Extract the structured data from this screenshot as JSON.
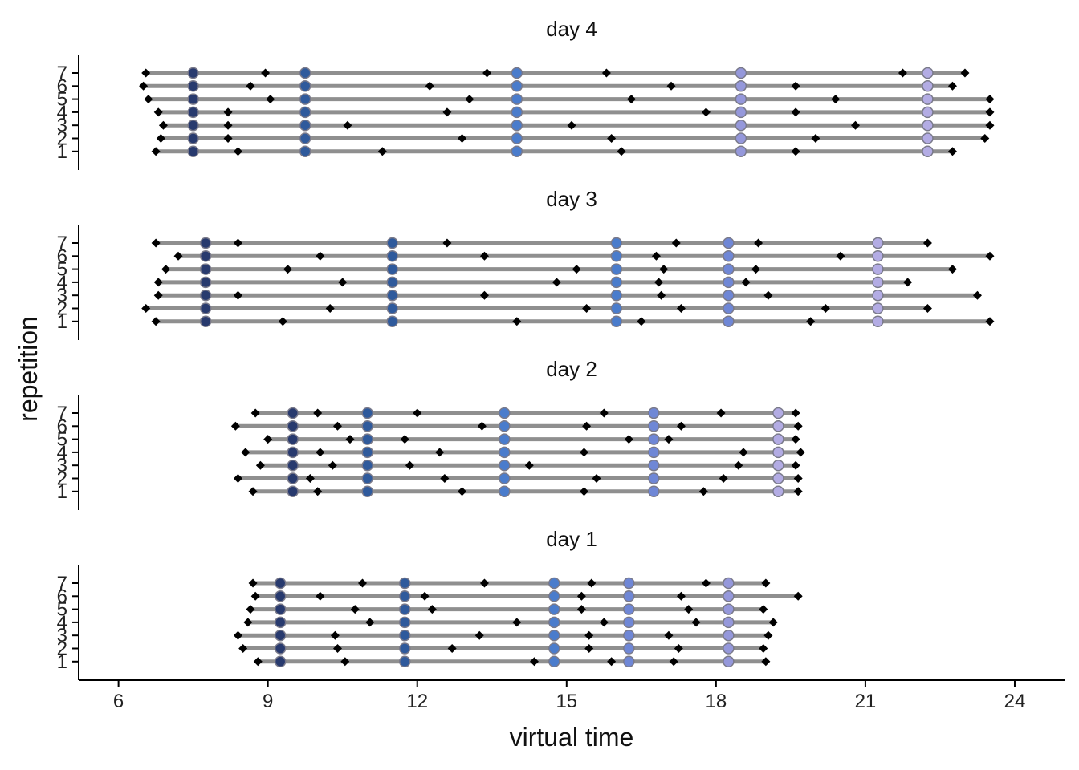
{
  "chart_data": {
    "type": "scatter",
    "title": "",
    "xlabel": "virtual time",
    "ylabel": "repetition",
    "xlim": [
      5.2,
      25.0
    ],
    "x_ticks": [
      "6",
      "9",
      "12",
      "15",
      "18",
      "21",
      "24"
    ],
    "y_ticks": [
      "1",
      "2",
      "3",
      "4",
      "5",
      "6",
      "7"
    ],
    "grid": false,
    "marker_colors": [
      "#283a6e",
      "#2f5a9c",
      "#4a7ccc",
      "#6f87d6",
      "#9598db",
      "#b3ace4"
    ],
    "event_color": "#000000",
    "line_color": "#8f8f8f",
    "panels": [
      {
        "name": "day 4",
        "markers": [
          7.5,
          9.75,
          14.0,
          18.5,
          22.25
        ],
        "marker_colors": [
          "#283a6e",
          "#2f5a9c",
          "#4a7ccc",
          "#9598db",
          "#b3ace4"
        ],
        "repetitions": [
          {
            "rep": 1,
            "start": 6.75,
            "end": 22.75,
            "events": [
              6.75,
              8.4,
              11.3,
              16.1,
              19.6,
              22.75
            ]
          },
          {
            "rep": 2,
            "start": 6.85,
            "end": 23.4,
            "events": [
              6.85,
              8.2,
              12.9,
              15.9,
              20.0,
              23.4
            ]
          },
          {
            "rep": 3,
            "start": 6.9,
            "end": 23.5,
            "events": [
              6.9,
              8.2,
              10.6,
              15.1,
              20.8,
              23.5
            ]
          },
          {
            "rep": 4,
            "start": 6.8,
            "end": 23.5,
            "events": [
              6.8,
              8.2,
              12.6,
              17.8,
              19.6,
              23.5
            ]
          },
          {
            "rep": 5,
            "start": 6.6,
            "end": 23.5,
            "events": [
              6.6,
              9.05,
              13.05,
              16.3,
              20.4,
              23.5
            ]
          },
          {
            "rep": 6,
            "start": 6.5,
            "end": 22.75,
            "events": [
              6.5,
              8.65,
              12.25,
              17.1,
              19.6,
              22.75
            ]
          },
          {
            "rep": 7,
            "start": 6.55,
            "end": 23.0,
            "events": [
              6.55,
              8.95,
              13.4,
              15.8,
              21.75,
              23.0
            ]
          }
        ]
      },
      {
        "name": "day 3",
        "markers": [
          7.75,
          11.5,
          16.0,
          18.25,
          21.25
        ],
        "marker_colors": [
          "#283a6e",
          "#2f5a9c",
          "#4a7ccc",
          "#6f87d6",
          "#b3ace4"
        ],
        "repetitions": [
          {
            "rep": 1,
            "start": 6.75,
            "end": 23.5,
            "events": [
              6.75,
              9.3,
              14.0,
              16.5,
              19.9,
              23.5
            ]
          },
          {
            "rep": 2,
            "start": 6.55,
            "end": 22.25,
            "events": [
              6.55,
              10.25,
              15.4,
              17.3,
              20.2,
              22.25
            ]
          },
          {
            "rep": 3,
            "start": 6.8,
            "end": 23.25,
            "events": [
              6.8,
              8.4,
              13.35,
              16.9,
              19.05,
              23.25
            ]
          },
          {
            "rep": 4,
            "start": 6.8,
            "end": 21.85,
            "events": [
              6.8,
              10.5,
              14.8,
              16.85,
              18.6,
              21.85
            ]
          },
          {
            "rep": 5,
            "start": 6.95,
            "end": 22.75,
            "events": [
              6.95,
              9.4,
              15.2,
              16.95,
              18.8,
              22.75
            ]
          },
          {
            "rep": 6,
            "start": 7.2,
            "end": 23.5,
            "events": [
              7.2,
              10.05,
              13.35,
              16.8,
              20.5,
              23.5
            ]
          },
          {
            "rep": 7,
            "start": 6.75,
            "end": 22.25,
            "events": [
              6.75,
              8.4,
              12.6,
              17.2,
              18.85,
              22.25
            ]
          }
        ]
      },
      {
        "name": "day 2",
        "markers": [
          9.5,
          11.0,
          13.75,
          16.75,
          19.25
        ],
        "marker_colors": [
          "#283a6e",
          "#2f5a9c",
          "#4a7ccc",
          "#6f87d6",
          "#b3ace4"
        ],
        "repetitions": [
          {
            "rep": 1,
            "start": 8.7,
            "end": 19.65,
            "events": [
              8.7,
              10.0,
              12.9,
              15.35,
              17.75,
              19.65
            ]
          },
          {
            "rep": 2,
            "start": 8.4,
            "end": 19.65,
            "events": [
              8.4,
              9.85,
              12.55,
              15.6,
              18.15,
              19.65
            ]
          },
          {
            "rep": 3,
            "start": 8.85,
            "end": 19.6,
            "events": [
              8.85,
              10.3,
              11.85,
              14.25,
              18.45,
              19.6
            ]
          },
          {
            "rep": 4,
            "start": 8.55,
            "end": 19.7,
            "events": [
              8.55,
              10.05,
              12.45,
              15.35,
              18.55,
              19.7
            ]
          },
          {
            "rep": 5,
            "start": 9.0,
            "end": 19.6,
            "events": [
              9.0,
              10.65,
              11.75,
              16.25,
              17.05,
              19.6
            ]
          },
          {
            "rep": 6,
            "start": 8.35,
            "end": 19.65,
            "events": [
              8.35,
              10.4,
              13.3,
              15.4,
              17.3,
              19.65
            ]
          },
          {
            "rep": 7,
            "start": 8.75,
            "end": 19.6,
            "events": [
              8.75,
              10.0,
              12.0,
              15.75,
              18.1,
              19.6
            ]
          }
        ]
      },
      {
        "name": "day 1",
        "markers": [
          9.25,
          11.75,
          14.75,
          16.25,
          18.25
        ],
        "marker_colors": [
          "#283a6e",
          "#2f5a9c",
          "#4a7ccc",
          "#6f87d6",
          "#9598db"
        ],
        "repetitions": [
          {
            "rep": 1,
            "start": 8.8,
            "end": 19.0,
            "events": [
              8.8,
              10.55,
              14.35,
              15.9,
              17.15,
              19.0
            ]
          },
          {
            "rep": 2,
            "start": 8.5,
            "end": 18.95,
            "events": [
              8.5,
              10.4,
              12.7,
              15.45,
              17.25,
              18.95
            ]
          },
          {
            "rep": 3,
            "start": 8.4,
            "end": 19.05,
            "events": [
              8.4,
              10.35,
              13.25,
              15.45,
              17.05,
              19.05
            ]
          },
          {
            "rep": 4,
            "start": 8.6,
            "end": 19.15,
            "events": [
              8.6,
              11.05,
              14.0,
              15.75,
              17.6,
              19.15
            ]
          },
          {
            "rep": 5,
            "start": 8.65,
            "end": 18.95,
            "events": [
              8.65,
              10.75,
              12.3,
              15.3,
              17.45,
              18.95
            ]
          },
          {
            "rep": 6,
            "start": 8.75,
            "end": 19.65,
            "events": [
              8.75,
              10.05,
              12.15,
              15.3,
              17.3,
              19.65
            ]
          },
          {
            "rep": 7,
            "start": 8.7,
            "end": 19.0,
            "events": [
              8.7,
              10.9,
              13.35,
              15.5,
              17.8,
              19.0
            ]
          }
        ]
      }
    ]
  }
}
